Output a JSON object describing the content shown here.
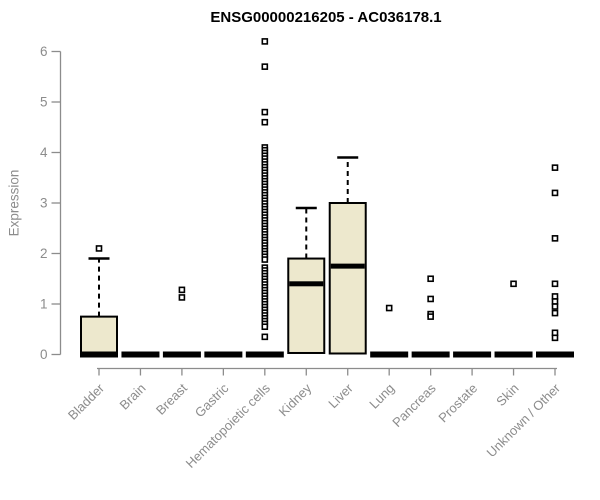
{
  "title": "ENSG00000216205 - AC036178.1",
  "colors": {
    "background": "#ffffff",
    "box_fill": "#ede8cd",
    "box_stroke": "#000000",
    "median": "#000000",
    "whisker": "#000000",
    "outlier_stroke": "#000000",
    "outlier_fill": "#ffffff",
    "axis": "#8c8c8c",
    "tick_label": "#8c8c8c",
    "title_color": "#000000"
  },
  "chart_data": {
    "type": "box",
    "title": "ENSG00000216205 - AC036178.1",
    "xlabel": "",
    "ylabel": "Expression",
    "ylim": [
      0,
      6
    ],
    "yticks": [
      0,
      1,
      2,
      3,
      4,
      5,
      6
    ],
    "grid": false,
    "legend": "none",
    "categories": [
      "Bladder",
      "Brain",
      "Breast",
      "Gastric",
      "Hematopoietic cells",
      "Kidney",
      "Liver",
      "Lung",
      "Pancreas",
      "Prostate",
      "Skin",
      "Unknown / Other"
    ],
    "series": [
      {
        "category": "Bladder",
        "q1": 0,
        "median": 0,
        "q3": 0.75,
        "whisker_low": 0,
        "whisker_high": 1.9,
        "outliers": [
          2.1
        ],
        "outlier_stacks": []
      },
      {
        "category": "Brain",
        "q1": 0,
        "median": 0,
        "q3": 0,
        "whisker_low": 0,
        "whisker_high": 0,
        "outliers": [],
        "outlier_stacks": []
      },
      {
        "category": "Breast",
        "q1": 0,
        "median": 0,
        "q3": 0,
        "whisker_low": 0,
        "whisker_high": 0,
        "outliers": [
          1.28,
          1.13
        ],
        "outlier_stacks": []
      },
      {
        "category": "Gastric",
        "q1": 0,
        "median": 0,
        "q3": 0,
        "whisker_low": 0,
        "whisker_high": 0,
        "outliers": [],
        "outlier_stacks": []
      },
      {
        "category": "Hematopoietic cells",
        "q1": 0,
        "median": 0,
        "q3": 0,
        "whisker_low": 0,
        "whisker_high": 0,
        "outliers": [
          6.2,
          5.7,
          4.8,
          4.6,
          0.35
        ],
        "outlier_stacks": [
          {
            "max": 4.1,
            "min": 3.88,
            "count": 5
          },
          {
            "max": 3.82,
            "min": 1.88,
            "count": 36
          },
          {
            "max": 1.72,
            "min": 0.55,
            "count": 22
          }
        ]
      },
      {
        "category": "Kidney",
        "q1": 0.03,
        "median": 1.4,
        "q3": 1.9,
        "whisker_low": 0.03,
        "whisker_high": 2.9,
        "outliers": [],
        "outlier_stacks": []
      },
      {
        "category": "Liver",
        "q1": 0.02,
        "median": 1.75,
        "q3": 3.0,
        "whisker_low": 0.02,
        "whisker_high": 3.9,
        "outliers": [],
        "outlier_stacks": []
      },
      {
        "category": "Lung",
        "q1": 0,
        "median": 0,
        "q3": 0,
        "whisker_low": 0,
        "whisker_high": 0,
        "outliers": [
          0.92
        ],
        "outlier_stacks": []
      },
      {
        "category": "Pancreas",
        "q1": 0,
        "median": 0,
        "q3": 0,
        "whisker_low": 0,
        "whisker_high": 0,
        "outliers": [
          1.5,
          1.1,
          0.8,
          0.75
        ],
        "outlier_stacks": []
      },
      {
        "category": "Prostate",
        "q1": 0,
        "median": 0,
        "q3": 0,
        "whisker_low": 0,
        "whisker_high": 0,
        "outliers": [],
        "outlier_stacks": []
      },
      {
        "category": "Skin",
        "q1": 0,
        "median": 0,
        "q3": 0,
        "whisker_low": 0,
        "whisker_high": 0,
        "outliers": [
          1.4
        ],
        "outlier_stacks": []
      },
      {
        "category": "Unknown / Other",
        "q1": 0,
        "median": 0,
        "q3": 0,
        "whisker_low": 0,
        "whisker_high": 0,
        "outliers": [
          3.7,
          3.2,
          2.3,
          1.4,
          1.15,
          1.05,
          0.95,
          0.82,
          0.43,
          0.33
        ],
        "outlier_stacks": []
      }
    ]
  }
}
